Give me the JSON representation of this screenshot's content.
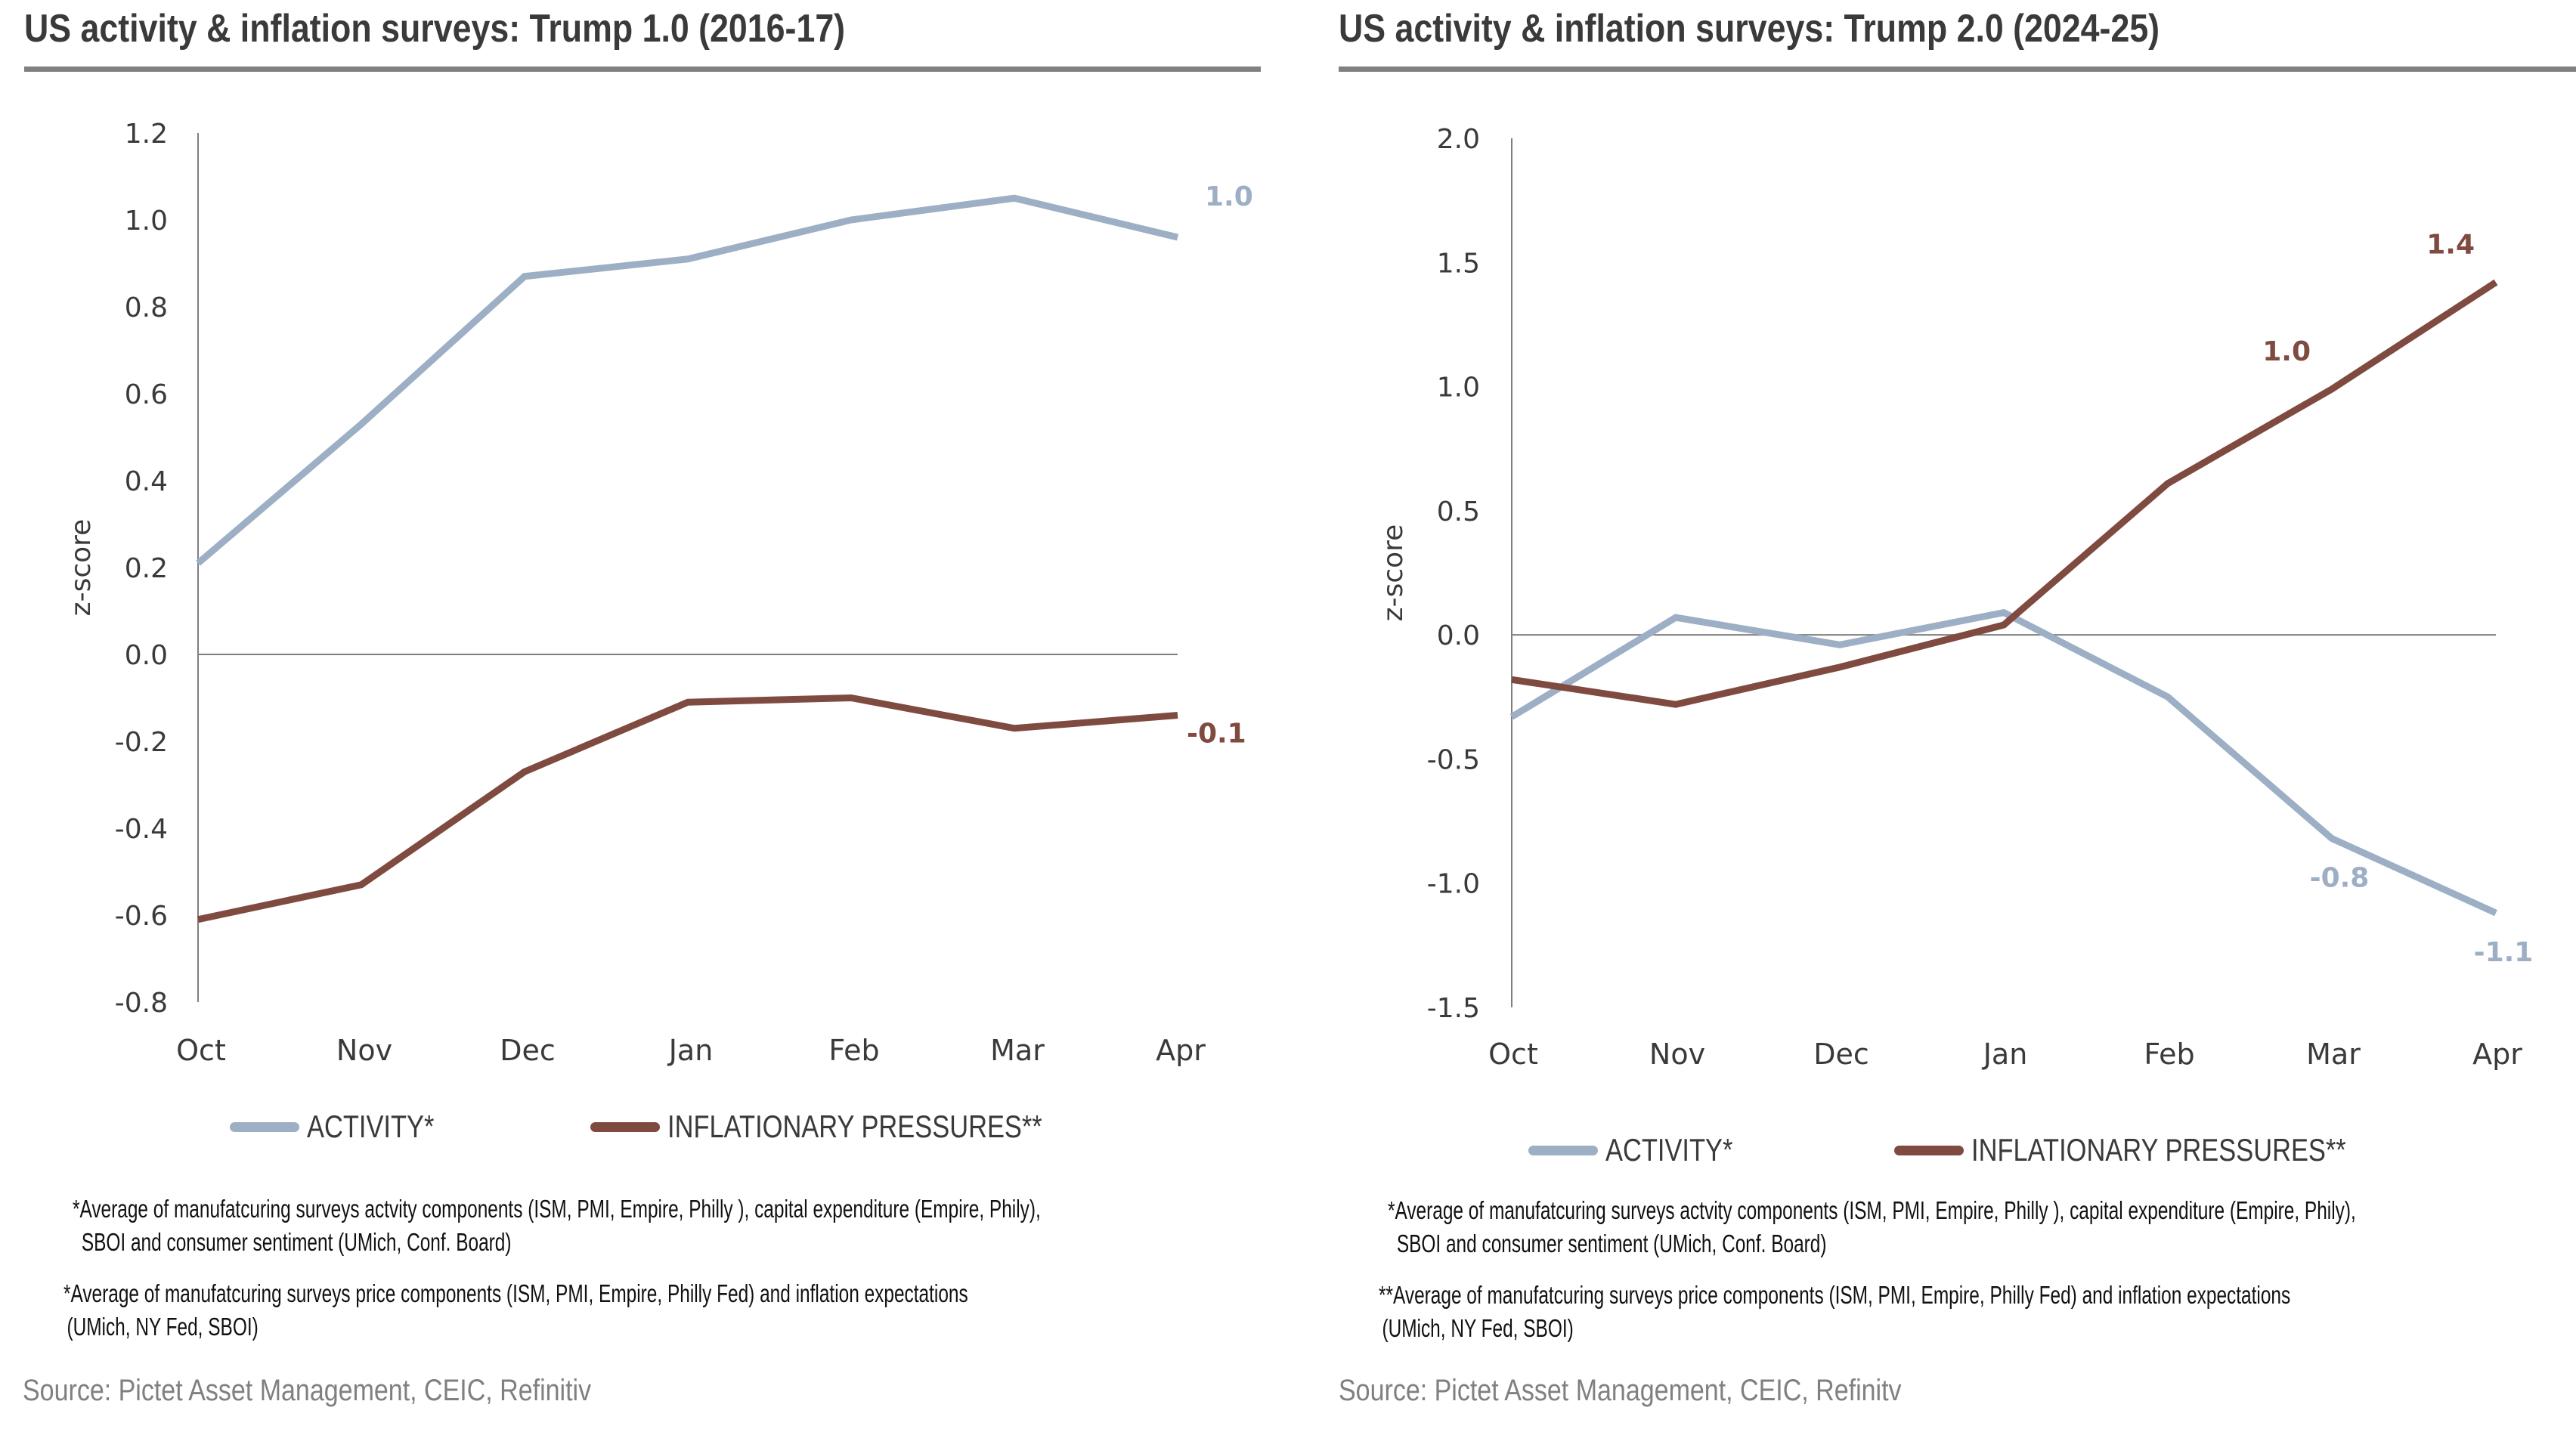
{
  "colors": {
    "activity": "#9DAFC5",
    "inflation": "#7F4A3F",
    "axis": "#7f7f7f",
    "title_rule": "#808080",
    "source_text": "#808080"
  },
  "panels": [
    {
      "title": "US activity & inflation surveys: Trump 1.0 (2016-17)",
      "legend": [
        {
          "label": "ACTIVITY*",
          "series": "activity"
        },
        {
          "label": "INFLATIONARY PRESSURES**",
          "series": "inflation"
        }
      ],
      "footnotes": [
        {
          "line1": "*Average of manufatcuring surveys actvity components (ISM, PMI, Empire, Philly ), capital expenditure (Empire, Phily),",
          "line2": "SBOI and consumer sentiment (UMich, Conf. Board)"
        },
        {
          "line1": "*Average of manufatcuring surveys price components (ISM, PMI, Empire, Philly Fed)  and inflation expectations",
          "line2": "(UMich, NY Fed, SBOI)"
        }
      ],
      "source": "Source: Pictet Asset Management, CEIC, Refinitiv"
    },
    {
      "title": "US activity & inflation surveys: Trump 2.0 (2024-25)",
      "legend": [
        {
          "label": "ACTIVITY*",
          "series": "activity"
        },
        {
          "label": "INFLATIONARY PRESSURES**",
          "series": "inflation"
        }
      ],
      "footnotes": [
        {
          "line1": "*Average of manufatcuring surveys actvity components (ISM, PMI, Empire, Philly ), capital expenditure (Empire, Phily),",
          "line2": "SBOI and consumer sentiment (UMich, Conf. Board)"
        },
        {
          "line1": "**Average of manufatcuring surveys price components (ISM, PMI, Empire, Philly Fed)  and inflation expectations",
          "line2": "(UMich, NY Fed, SBOI)"
        }
      ],
      "source": "Source: Pictet Asset Management, CEIC, Refinitv"
    }
  ],
  "chart_data": [
    {
      "type": "line",
      "title": "US activity & inflation surveys: Trump 1.0 (2016-17)",
      "xlabel": "",
      "ylabel": "z-score",
      "categories": [
        "Oct",
        "Nov",
        "Dec",
        "Jan",
        "Feb",
        "Mar",
        "Apr"
      ],
      "ylim": [
        -0.8,
        1.2
      ],
      "yticks": [
        1.2,
        1.0,
        0.8,
        0.6,
        0.4,
        0.2,
        0.0,
        -0.2,
        -0.4,
        -0.6,
        -0.8
      ],
      "ytick_labels": [
        "1.2",
        "1.0",
        "0.8",
        "0.6",
        "0.4",
        "0.2",
        "0.0",
        "-0.2",
        "-0.4",
        "-0.6",
        "-0.8"
      ],
      "zero_line": true,
      "grid": false,
      "legend_position": "bottom",
      "series": [
        {
          "name": "ACTIVITY*",
          "key": "activity",
          "values": [
            0.21,
            0.53,
            0.87,
            0.91,
            1.0,
            1.05,
            0.96
          ]
        },
        {
          "name": "INFLATIONARY PRESSURES**",
          "key": "inflation",
          "values": [
            -0.61,
            -0.53,
            -0.27,
            -0.11,
            -0.1,
            -0.17,
            -0.14
          ]
        }
      ],
      "annotations": [
        {
          "text": "1.0",
          "series": "activity",
          "index": 6,
          "position": "above-right"
        },
        {
          "text": "-0.1",
          "series": "inflation",
          "index": 6,
          "position": "below-right"
        }
      ]
    },
    {
      "type": "line",
      "title": "US activity & inflation surveys: Trump 2.0 (2024-25)",
      "xlabel": "",
      "ylabel": "z-score",
      "categories": [
        "Oct",
        "Nov",
        "Dec",
        "Jan",
        "Feb",
        "Mar",
        "Apr"
      ],
      "ylim": [
        -1.5,
        2.0
      ],
      "yticks": [
        2.0,
        1.5,
        1.0,
        0.5,
        0.0,
        -0.5,
        -1.0,
        -1.5
      ],
      "ytick_labels": [
        "2.0",
        "1.5",
        "1.0",
        "0.5",
        "0.0",
        "-0.5",
        "-1.0",
        "-1.5"
      ],
      "zero_line": true,
      "grid": false,
      "legend_position": "bottom",
      "series": [
        {
          "name": "ACTIVITY*",
          "key": "activity",
          "values": [
            -0.33,
            0.07,
            -0.04,
            0.09,
            -0.25,
            -0.82,
            -1.12
          ]
        },
        {
          "name": "INFLATIONARY PRESSURES**",
          "key": "inflation",
          "values": [
            -0.18,
            -0.28,
            -0.13,
            0.04,
            0.61,
            0.99,
            1.42
          ]
        }
      ],
      "annotations": [
        {
          "text": "1.0",
          "series": "inflation",
          "index": 5,
          "position": "above-left"
        },
        {
          "text": "1.4",
          "series": "inflation",
          "index": 6,
          "position": "above-left"
        },
        {
          "text": "-0.8",
          "series": "activity",
          "index": 5,
          "position": "below"
        },
        {
          "text": "-1.1",
          "series": "activity",
          "index": 6,
          "position": "below"
        }
      ]
    }
  ]
}
